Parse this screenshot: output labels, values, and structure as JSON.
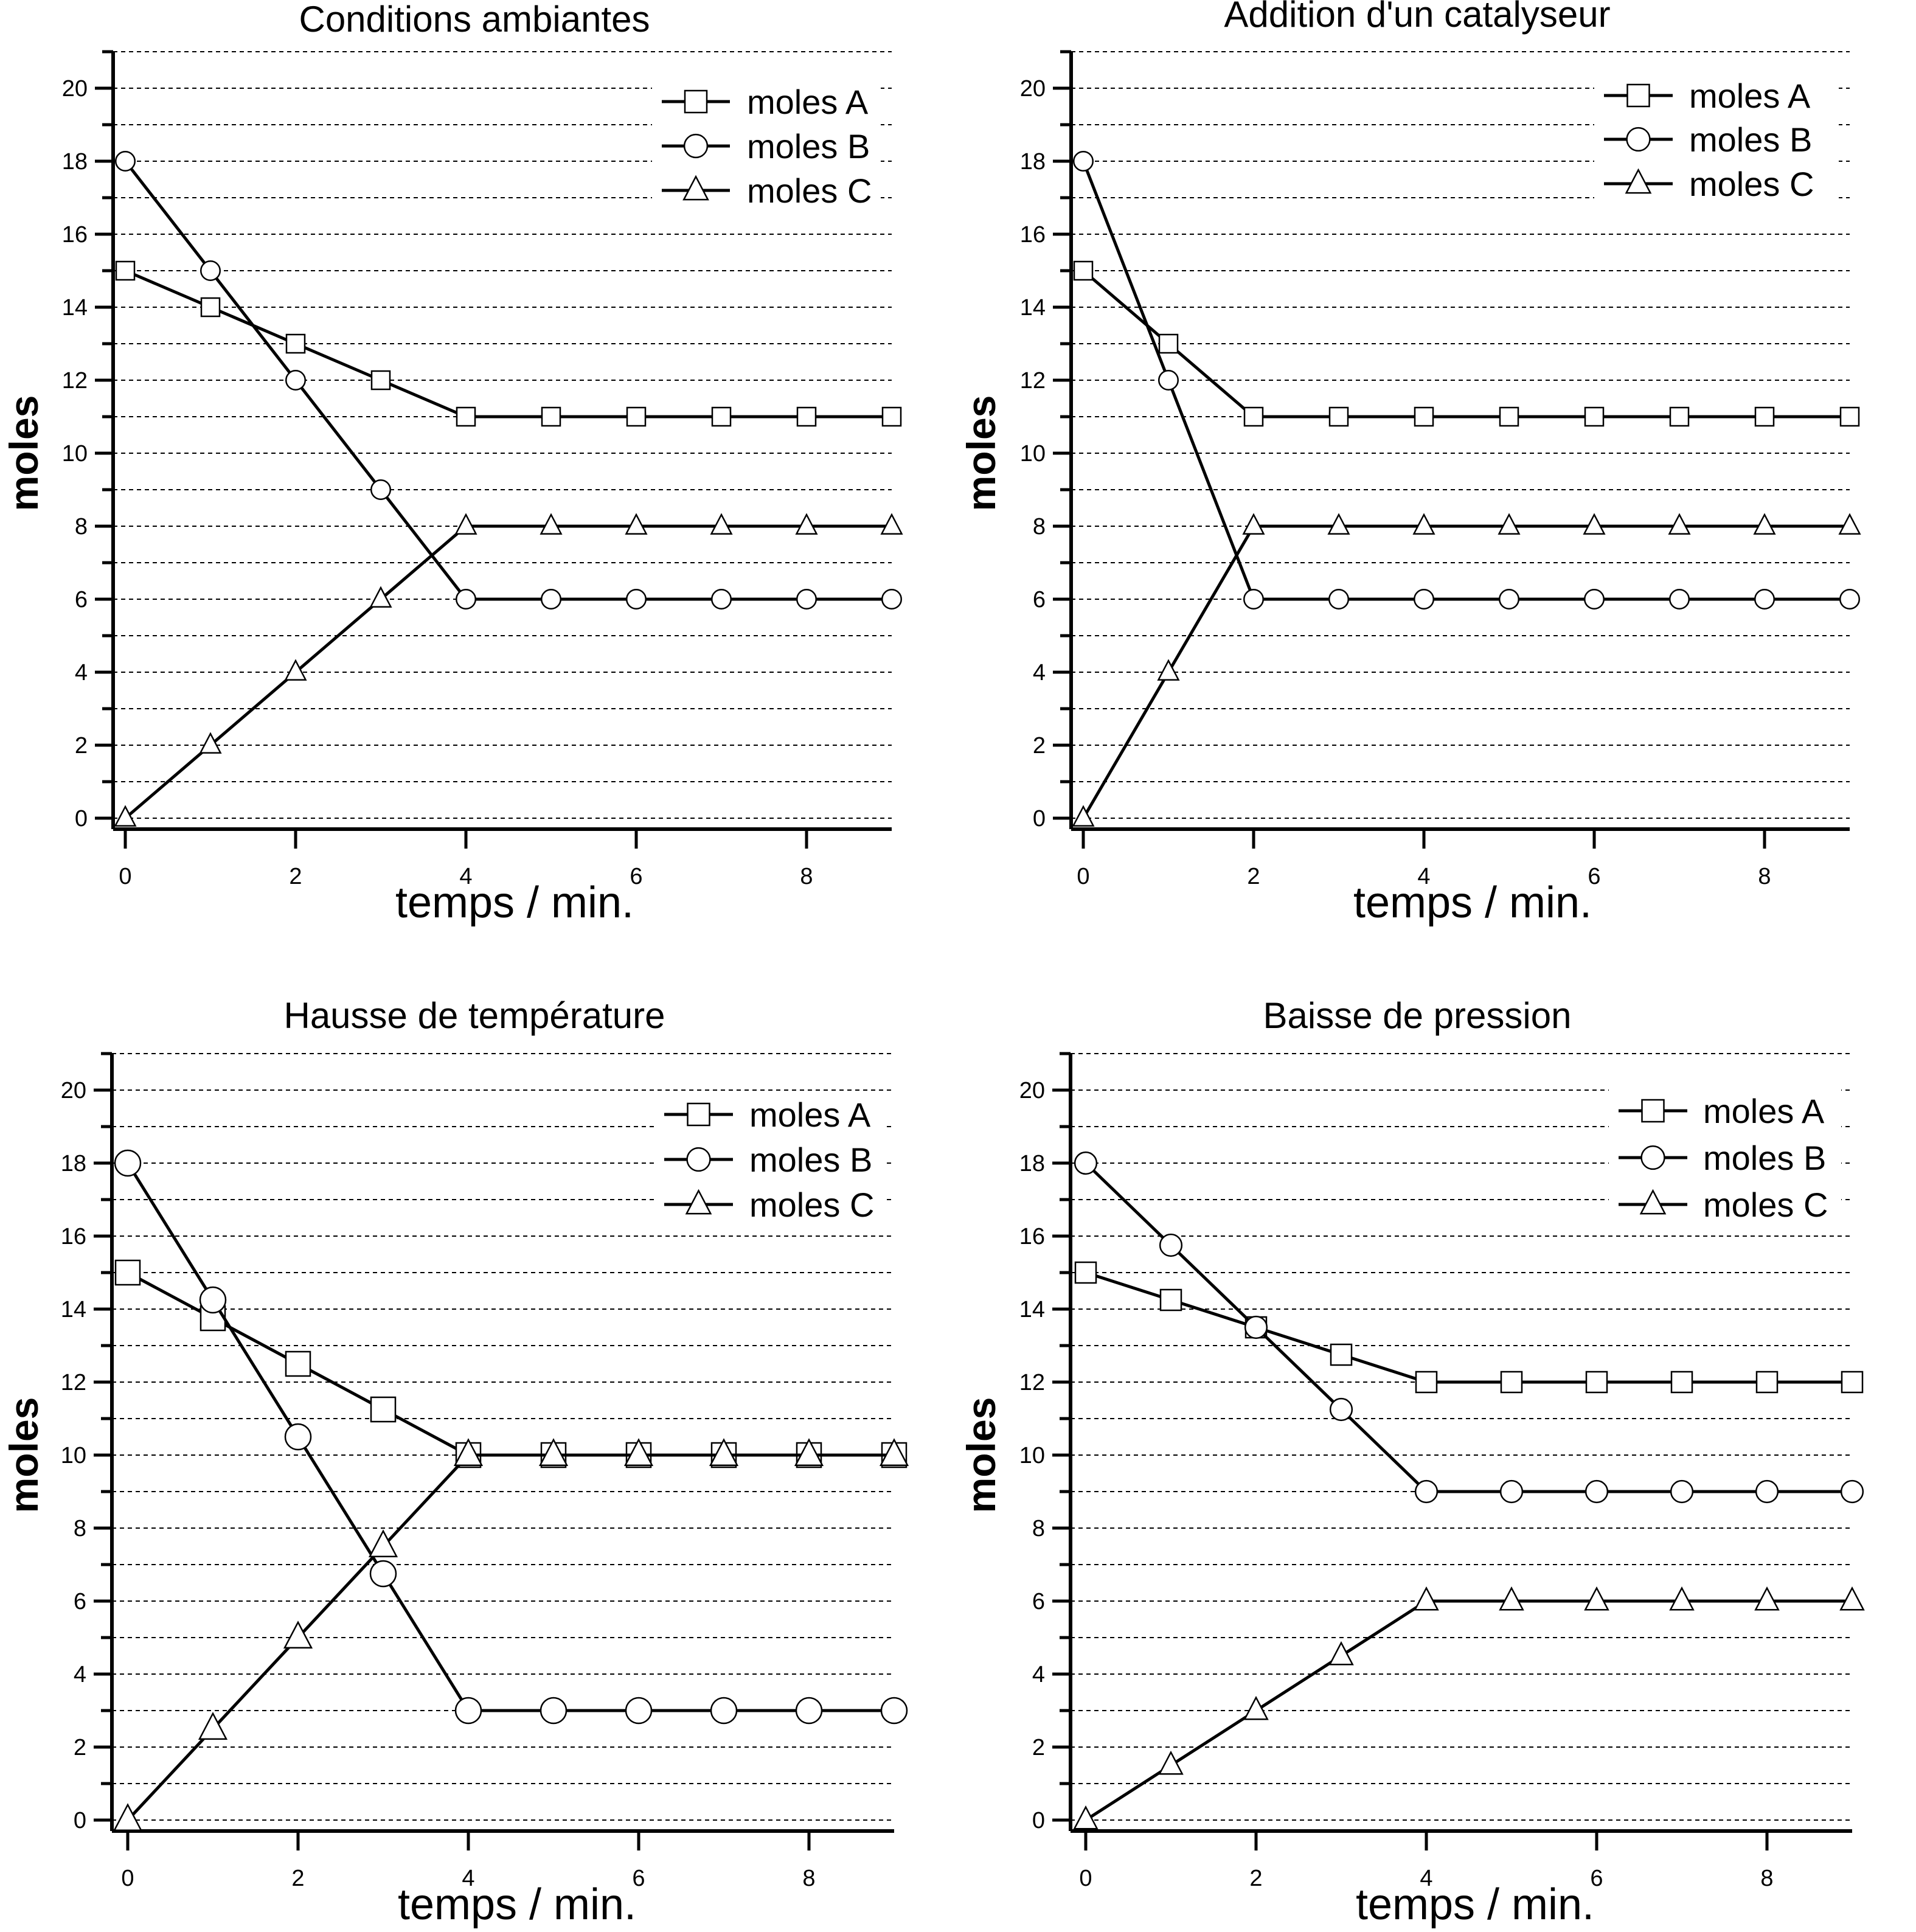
{
  "chart_data": [
    {
      "type": "line",
      "title": "Conditions ambiantes",
      "xlabel": "temps / min.",
      "ylabel": "moles",
      "x": [
        0,
        1,
        2,
        3,
        4,
        5,
        6,
        7,
        8,
        9
      ],
      "xlim": [
        0,
        9
      ],
      "ylim": [
        0,
        21
      ],
      "xticks": [
        "0",
        "2",
        "4",
        "6",
        "8"
      ],
      "yticks": [
        "0",
        "2",
        "4",
        "6",
        "8",
        "10",
        "12",
        "14",
        "16",
        "18",
        "20"
      ],
      "grid": true,
      "legend": "top-right",
      "series": [
        {
          "name": "moles A",
          "marker": "square",
          "values": [
            15,
            14,
            13,
            12,
            11,
            11,
            11,
            11,
            11,
            11
          ]
        },
        {
          "name": "moles B",
          "marker": "circle",
          "values": [
            18,
            15,
            12,
            9,
            6,
            6,
            6,
            6,
            6,
            6
          ]
        },
        {
          "name": "moles C",
          "marker": "triangle",
          "values": [
            0,
            2,
            4,
            6,
            8,
            8,
            8,
            8,
            8,
            8
          ]
        }
      ]
    },
    {
      "type": "line",
      "title": "Addition d'un catalyseur",
      "xlabel": "temps / min.",
      "ylabel": "moles",
      "x": [
        0,
        1,
        2,
        3,
        4,
        5,
        6,
        7,
        8,
        9
      ],
      "xlim": [
        0,
        9
      ],
      "ylim": [
        0,
        21
      ],
      "xticks": [
        "0",
        "2",
        "4",
        "6",
        "8"
      ],
      "yticks": [
        "0",
        "2",
        "4",
        "6",
        "8",
        "10",
        "12",
        "14",
        "16",
        "18",
        "20"
      ],
      "grid": true,
      "legend": "top-right",
      "series": [
        {
          "name": "moles A",
          "marker": "square",
          "values": [
            15,
            13,
            11,
            11,
            11,
            11,
            11,
            11,
            11,
            11
          ]
        },
        {
          "name": "moles B",
          "marker": "circle",
          "values": [
            18,
            12,
            6,
            6,
            6,
            6,
            6,
            6,
            6,
            6
          ]
        },
        {
          "name": "moles C",
          "marker": "triangle",
          "values": [
            0,
            4,
            8,
            8,
            8,
            8,
            8,
            8,
            8,
            8
          ]
        }
      ]
    },
    {
      "type": "line",
      "title": "Hausse de température",
      "xlabel": "temps / min.",
      "ylabel": "moles",
      "x": [
        0,
        1,
        2,
        3,
        4,
        5,
        6,
        7,
        8,
        9
      ],
      "xlim": [
        0,
        9
      ],
      "ylim": [
        0,
        21
      ],
      "xticks": [
        "0",
        "2",
        "4",
        "6",
        "8"
      ],
      "yticks": [
        "0",
        "2",
        "4",
        "6",
        "8",
        "10",
        "12",
        "14",
        "16",
        "18",
        "20"
      ],
      "grid": true,
      "legend": "top-right",
      "series": [
        {
          "name": "moles A",
          "marker": "square",
          "values": [
            15,
            13.75,
            12.5,
            11.25,
            10,
            10,
            10,
            10,
            10,
            10
          ]
        },
        {
          "name": "moles B",
          "marker": "circle",
          "values": [
            18,
            14.25,
            10.5,
            6.75,
            3,
            3,
            3,
            3,
            3,
            3
          ]
        },
        {
          "name": "moles C",
          "marker": "triangle",
          "values": [
            0,
            2.5,
            5,
            7.5,
            10,
            10,
            10,
            10,
            10,
            10
          ]
        }
      ]
    },
    {
      "type": "line",
      "title": "Baisse de pression",
      "xlabel": "temps / min.",
      "ylabel": "moles",
      "x": [
        0,
        1,
        2,
        3,
        4,
        5,
        6,
        7,
        8,
        9
      ],
      "xlim": [
        0,
        9
      ],
      "ylim": [
        0,
        21
      ],
      "xticks": [
        "0",
        "2",
        "4",
        "6",
        "8"
      ],
      "yticks": [
        "0",
        "2",
        "4",
        "6",
        "8",
        "10",
        "12",
        "14",
        "16",
        "18",
        "20"
      ],
      "grid": true,
      "legend": "top-right",
      "series": [
        {
          "name": "moles A",
          "marker": "square",
          "values": [
            15,
            14.25,
            13.5,
            12.75,
            12,
            12,
            12,
            12,
            12,
            12
          ]
        },
        {
          "name": "moles B",
          "marker": "circle",
          "values": [
            18,
            15.75,
            13.5,
            11.25,
            9,
            9,
            9,
            9,
            9,
            9
          ]
        },
        {
          "name": "moles C",
          "marker": "triangle",
          "values": [
            0,
            1.5,
            3,
            4.5,
            6,
            6,
            6,
            6,
            6,
            6
          ]
        }
      ]
    }
  ]
}
